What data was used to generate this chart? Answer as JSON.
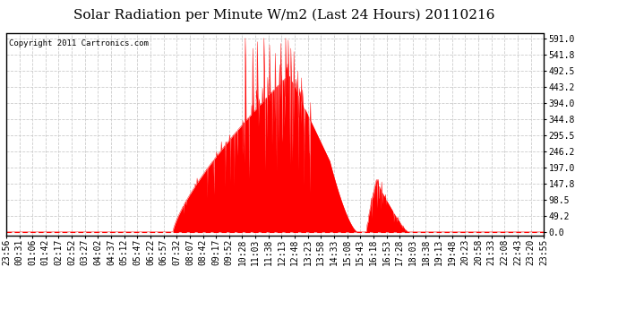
{
  "title": "Solar Radiation per Minute W/m2 (Last 24 Hours) 20110216",
  "copyright": "Copyright 2011 Cartronics.com",
  "fill_color": "#FF0000",
  "line_color": "#FF0000",
  "background_color": "#FFFFFF",
  "plot_bg_color": "#FFFFFF",
  "grid_color": "#CCCCCC",
  "dashed_line_color": "#FF0000",
  "yticks": [
    0.0,
    49.2,
    98.5,
    147.8,
    197.0,
    246.2,
    295.5,
    344.8,
    394.0,
    443.2,
    492.5,
    541.8,
    591.0
  ],
  "ymax": 605.0,
  "ymin": -10.0,
  "num_points": 1440,
  "title_fontsize": 11,
  "tick_fontsize": 7,
  "copyright_fontsize": 6.5,
  "x_tick_labels": [
    "23:56",
    "00:31",
    "01:06",
    "01:42",
    "02:17",
    "02:52",
    "03:27",
    "04:02",
    "04:37",
    "05:12",
    "05:47",
    "06:22",
    "06:57",
    "07:32",
    "08:07",
    "08:42",
    "09:17",
    "09:52",
    "10:28",
    "11:03",
    "11:38",
    "12:13",
    "12:48",
    "13:23",
    "13:58",
    "14:33",
    "15:08",
    "15:43",
    "16:18",
    "16:53",
    "17:28",
    "18:03",
    "18:38",
    "19:13",
    "19:48",
    "20:23",
    "20:58",
    "21:33",
    "22:08",
    "22:43",
    "23:20",
    "23:55"
  ]
}
